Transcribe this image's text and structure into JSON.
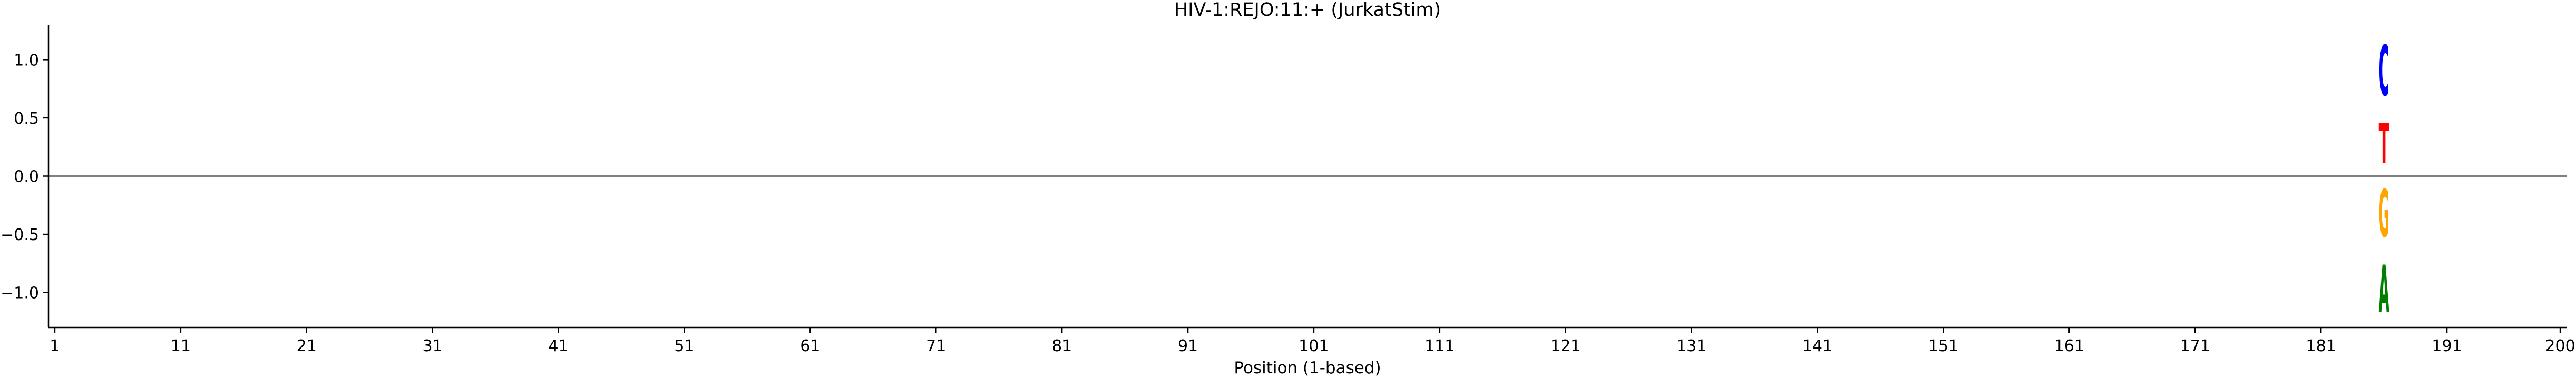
{
  "chart_data": {
    "type": "sequence-logo",
    "title": "HIV-1:REJO:11:+  (JurkatStim)",
    "xlabel": "Position (1-based)",
    "ylabel": "",
    "xlim": [
      1,
      200
    ],
    "ylim": [
      -1.3,
      1.3
    ],
    "x_ticks": [
      1,
      11,
      21,
      31,
      41,
      51,
      61,
      71,
      81,
      91,
      101,
      111,
      121,
      131,
      141,
      151,
      161,
      171,
      181,
      191,
      200
    ],
    "y_ticks": [
      1.0,
      0.5,
      0.0,
      -0.5,
      -1.0
    ],
    "y_tick_labels": [
      "1.0",
      "0.5",
      "0.0",
      "−0.5",
      "−1.0"
    ],
    "zero_line": true,
    "grid": false,
    "letters": [
      {
        "position": 186,
        "letter": "T",
        "bottom": 0.0,
        "top": 0.55,
        "color": "#ff0000"
      },
      {
        "position": 186,
        "letter": "C",
        "bottom": 0.55,
        "top": 1.25,
        "color": "#0000ff"
      },
      {
        "position": 186,
        "letter": "G",
        "bottom": -0.65,
        "top": 0.0,
        "color": "#ffa500"
      },
      {
        "position": 186,
        "letter": "A",
        "bottom": -1.3,
        "top": -0.65,
        "color": "#008000"
      }
    ]
  }
}
